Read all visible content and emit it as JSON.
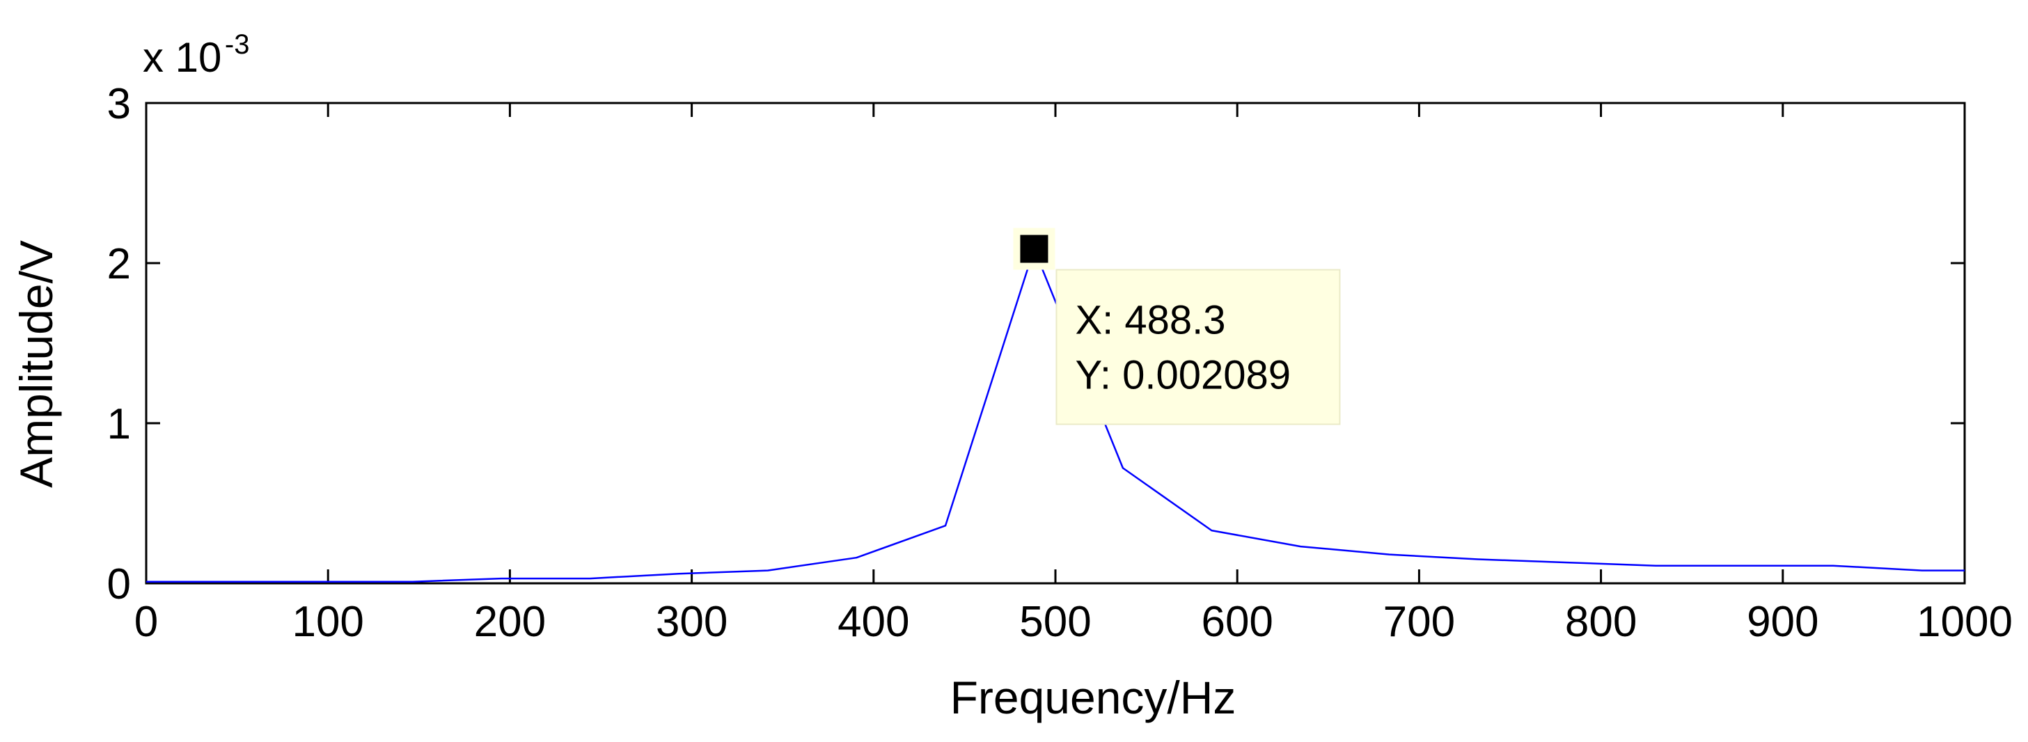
{
  "chart_data": {
    "type": "line",
    "title": "",
    "xlabel": "Frequency/Hz",
    "ylabel": "Amplitude/V",
    "xlim": [
      0,
      1000
    ],
    "ylim": [
      0,
      0.003
    ],
    "grid": false,
    "x_ticks": [
      "0",
      "100",
      "200",
      "300",
      "400",
      "500",
      "600",
      "700",
      "800",
      "900",
      "1000"
    ],
    "y_ticks": [
      "0",
      "1",
      "2",
      "3"
    ],
    "y_tick_values": [
      0,
      0.001,
      0.002,
      0.003
    ],
    "y_exponent_base": "x 10",
    "y_exponent_power": "-3",
    "series": [
      {
        "color": "#0000ff",
        "x": [
          0,
          48.8,
          97.7,
          146.5,
          195.3,
          244.1,
          293.0,
          341.8,
          390.6,
          439.5,
          488.3,
          537.1,
          585.9,
          634.8,
          683.6,
          732.4,
          781.3,
          830.1,
          878.9,
          927.7,
          976.6,
          1000
        ],
        "y": [
          1e-05,
          1e-05,
          1e-05,
          1e-05,
          3e-05,
          3e-05,
          6e-05,
          8e-05,
          0.00016,
          0.00036,
          0.002089,
          0.00072,
          0.00033,
          0.00023,
          0.00018,
          0.00015,
          0.00013,
          0.00011,
          0.00011,
          0.00011,
          8e-05,
          8e-05
        ]
      }
    ],
    "datatip": {
      "x_text": "X: 488.3",
      "y_text": "Y: 0.002089",
      "x": 488.3,
      "y": 0.002089
    }
  }
}
